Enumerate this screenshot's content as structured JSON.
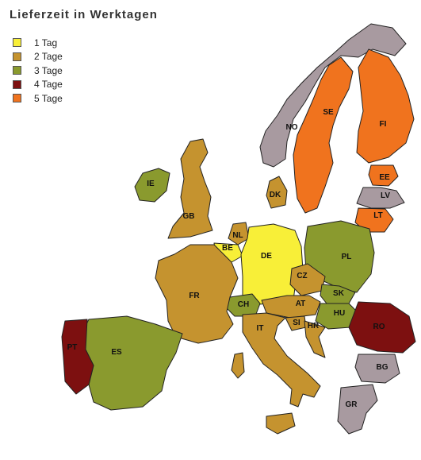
{
  "title": "Lieferzeit in Werktagen",
  "colors": {
    "1": "#f8ef38",
    "2": "#c5932f",
    "3": "#8a9a2e",
    "4": "#7d1010",
    "5": "#f0731e",
    "none": "#a89aa0"
  },
  "legend": [
    {
      "days": 1,
      "label": "1 Tag"
    },
    {
      "days": 2,
      "label": "2 Tage"
    },
    {
      "days": 3,
      "label": "3 Tage"
    },
    {
      "days": 4,
      "label": "4 Tage"
    },
    {
      "days": 5,
      "label": "5 Tage"
    }
  ],
  "countries": [
    {
      "code": "NO",
      "days": null
    },
    {
      "code": "SE",
      "days": 5
    },
    {
      "code": "FI",
      "days": 5
    },
    {
      "code": "EE",
      "days": 5
    },
    {
      "code": "LV",
      "days": null
    },
    {
      "code": "LT",
      "days": 5
    },
    {
      "code": "IE",
      "days": 3
    },
    {
      "code": "GB",
      "days": 2
    },
    {
      "code": "DK",
      "days": 2
    },
    {
      "code": "NL",
      "days": 2
    },
    {
      "code": "BE",
      "days": 1
    },
    {
      "code": "DE",
      "days": 1
    },
    {
      "code": "PL",
      "days": 3
    },
    {
      "code": "CZ",
      "days": 2
    },
    {
      "code": "SK",
      "days": 3
    },
    {
      "code": "AT",
      "days": 2
    },
    {
      "code": "CH",
      "days": 3
    },
    {
      "code": "HU",
      "days": 3
    },
    {
      "code": "SI",
      "days": 2
    },
    {
      "code": "HR",
      "days": 2
    },
    {
      "code": "RO",
      "days": 4
    },
    {
      "code": "BG",
      "days": null
    },
    {
      "code": "GR",
      "days": null
    },
    {
      "code": "FR",
      "days": 2
    },
    {
      "code": "IT",
      "days": 2
    },
    {
      "code": "ES",
      "days": 3
    },
    {
      "code": "PT",
      "days": 4
    }
  ]
}
